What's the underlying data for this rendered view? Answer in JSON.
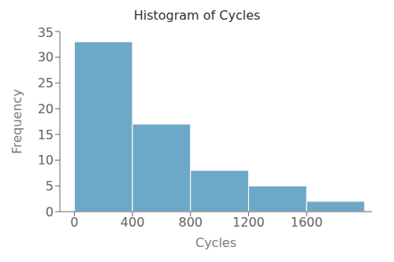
{
  "chart_data": {
    "type": "histogram",
    "title": "Histogram of Cycles",
    "xlabel": "Cycles",
    "ylabel": "Frequency",
    "bins": [
      0,
      400,
      800,
      1200,
      1600,
      2000
    ],
    "values": [
      33,
      17,
      8,
      5,
      2
    ],
    "color": "#6EA8C8",
    "xlim": [
      -100,
      2050
    ],
    "ylim": [
      0,
      35
    ],
    "xticks": [
      0,
      400,
      800,
      1200,
      1600
    ],
    "yticks": [
      0,
      5,
      10,
      15,
      20,
      25,
      30,
      35
    ]
  }
}
